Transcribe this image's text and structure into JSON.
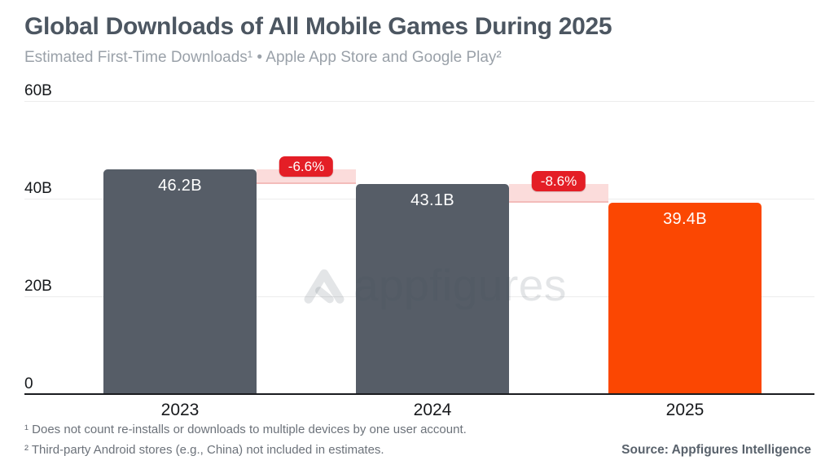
{
  "header": {
    "title": "Global Downloads of All Mobile Games During 2025",
    "subtitle": "Estimated First-Time Downloads¹ • Apple App Store and Google Play²"
  },
  "chart_data": {
    "type": "bar",
    "title": "Global Downloads of All Mobile Games During 2025",
    "subtitle": "Estimated First-Time Downloads¹ • Apple App Store and Google Play²",
    "categories": [
      "2023",
      "2024",
      "2025"
    ],
    "values": [
      46.2,
      43.1,
      39.4
    ],
    "unit": "billions of downloads",
    "value_labels": [
      "46.2B",
      "43.1B",
      "39.4B"
    ],
    "changes": [
      "-6.6%",
      "-8.6%"
    ],
    "xlabel": "",
    "ylabel": "",
    "ylim": [
      0,
      60
    ],
    "yticks": [
      "60B",
      "40B",
      "20B",
      "0"
    ],
    "ytick_values": [
      60,
      40,
      20,
      0
    ],
    "grid": true,
    "legend": "none",
    "bar_colors": [
      "#565D67",
      "#565D67",
      "#FB4702"
    ],
    "badge_color": "#E41E26",
    "band_color": "#FBDCDB"
  },
  "watermark": {
    "text": "appfigures"
  },
  "footer": {
    "footnote1": "¹ Does not count re-installs or downloads to multiple devices by one user account.",
    "footnote2": "² Third-party Android stores (e.g., China) not included in estimates.",
    "source": "Source: Appfigures Intelligence"
  }
}
